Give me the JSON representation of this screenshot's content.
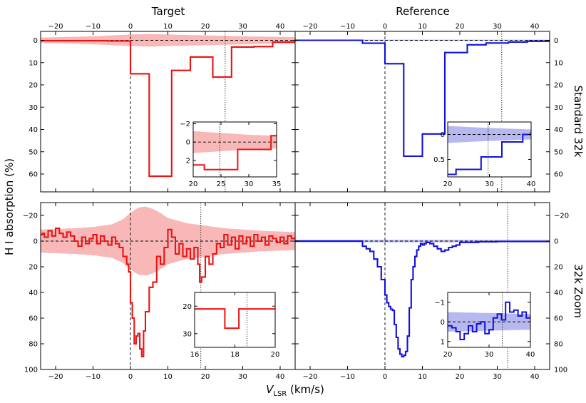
{
  "figure": {
    "col_titles": [
      "Target",
      "Reference"
    ],
    "row_labels": [
      "Standard 32k",
      "32k Zoom"
    ],
    "ylabel": "H I absorption (%)",
    "xlabel_main": "V",
    "xlabel_sub": "LSR",
    "xlabel_unit": " (km/s)"
  },
  "colors": {
    "target_line": "#ee1111",
    "target_band": "#f8b8b8",
    "reference_line": "#1010e0",
    "reference_band": "#b8b8f0",
    "axis": "#000000"
  },
  "chart_data": [
    {
      "panel": "target-standard",
      "type": "line",
      "step": true,
      "x_range": [
        -24,
        44
      ],
      "y_range": [
        68,
        -4
      ],
      "x_ticks": [
        -20,
        -10,
        0,
        10,
        20,
        30,
        40
      ],
      "y_ticks": [
        0,
        10,
        20,
        30,
        40,
        50,
        60
      ],
      "x": [
        -24,
        -6,
        0,
        5,
        11,
        16,
        22,
        27,
        33,
        38,
        44
      ],
      "y": [
        0.2,
        0.3,
        15,
        61,
        13.5,
        7.5,
        16.5,
        3,
        2.8,
        0.8,
        0.3
      ],
      "band_x": [
        -24,
        -10,
        0,
        5,
        10,
        20,
        30,
        44
      ],
      "band_hi": [
        1.2,
        1.8,
        2.6,
        2.8,
        2.6,
        2.2,
        1.8,
        1.4
      ],
      "vlines": [
        {
          "x": 0,
          "style": "dashed"
        },
        {
          "x": 25.3,
          "style": "dotted"
        }
      ],
      "inset": {
        "x_range": [
          20,
          35
        ],
        "y_range": [
          3.8,
          -2.2
        ],
        "x_ticks": [
          20,
          25,
          30,
          35
        ],
        "y_ticks": [
          -2,
          0,
          2
        ],
        "x": [
          20,
          22,
          28,
          34,
          35
        ],
        "y": [
          2.5,
          3.0,
          0.8,
          -0.7,
          -0.7
        ],
        "band_x": [
          20,
          25,
          30,
          35
        ],
        "band_hi": [
          1.2,
          1.0,
          0.8,
          0.7
        ],
        "vlines": [
          {
            "x": 24.8,
            "style": "dotted"
          }
        ]
      }
    },
    {
      "panel": "reference-standard",
      "type": "line",
      "step": true,
      "x_range": [
        -24,
        44
      ],
      "y_range": [
        68,
        -4
      ],
      "x_ticks": [
        -20,
        -10,
        0,
        10,
        20,
        30,
        40
      ],
      "y_ticks": [
        0,
        10,
        20,
        30,
        40,
        50,
        60
      ],
      "x": [
        -24,
        -6,
        0,
        5,
        10,
        16,
        22,
        27,
        33,
        38,
        44
      ],
      "y": [
        0,
        1.3,
        10.5,
        52,
        42,
        5.5,
        2.0,
        1.2,
        0.8,
        0.4,
        0.3
      ],
      "band_x": [
        -24,
        44
      ],
      "band_hi": [
        0.3,
        0.3
      ],
      "vlines": [
        {
          "x": 0,
          "style": "dashed"
        },
        {
          "x": 31.2,
          "style": "dotted"
        }
      ],
      "inset": {
        "x_range": [
          20,
          40
        ],
        "y_range": [
          0.85,
          -0.25
        ],
        "x_ticks": [
          20,
          30,
          40
        ],
        "y_ticks": [
          0.0,
          0.5
        ],
        "x": [
          20,
          22,
          28,
          33,
          38,
          40
        ],
        "y": [
          0.8,
          0.7,
          0.45,
          0.15,
          0.0,
          -0.05
        ],
        "band_x": [
          20,
          30,
          40
        ],
        "band_hi": [
          0.17,
          0.13,
          0.1
        ],
        "vlines": [
          {
            "x": 29.7,
            "style": "dotted"
          }
        ]
      }
    },
    {
      "panel": "target-zoom",
      "type": "line",
      "step": true,
      "x_range": [
        -24,
        44
      ],
      "y_range": [
        100,
        -30
      ],
      "x_ticks": [
        -20,
        -10,
        0,
        10,
        20,
        30,
        40
      ],
      "y_ticks": [
        -20,
        0,
        20,
        40,
        60,
        80,
        100
      ],
      "x": [
        -24,
        -23.5,
        -23,
        -22,
        -21,
        -20,
        -19,
        -18,
        -17,
        -16,
        -15,
        -14,
        -13,
        -12,
        -11,
        -10,
        -9,
        -8,
        -7,
        -6,
        -5,
        -4,
        -3,
        -2,
        -1,
        -0.5,
        0,
        0.5,
        1,
        1.5,
        2,
        2.5,
        3,
        3.5,
        4,
        5,
        6,
        7,
        8,
        9,
        10,
        11,
        12,
        13,
        14,
        15,
        16,
        17,
        18,
        18.5,
        19,
        20,
        21,
        22,
        23,
        24,
        25,
        26,
        27,
        28,
        29,
        30,
        31,
        32,
        33,
        34,
        35,
        36,
        37,
        38,
        39,
        40,
        41,
        42,
        43,
        44
      ],
      "y": [
        -5,
        -6,
        -3,
        -8,
        -4,
        -10,
        -6,
        -3,
        -7,
        -4,
        0,
        4,
        -3,
        2,
        -2,
        -5,
        2,
        -4,
        0,
        3,
        -3,
        2,
        5,
        12,
        18,
        24,
        48,
        60,
        80,
        74,
        72,
        84,
        90,
        70,
        55,
        36,
        32,
        12,
        18,
        5,
        -9,
        -3,
        10,
        2,
        12,
        6,
        14,
        5,
        18,
        32,
        28,
        12,
        18,
        10,
        2,
        5,
        -5,
        3,
        -3,
        6,
        -4,
        2,
        -3,
        4,
        -5,
        0,
        -3,
        3,
        -4,
        -2,
        1,
        -3,
        2,
        -4,
        -2,
        -3
      ],
      "band_x": [
        -24,
        -15,
        -10,
        -5,
        -2,
        0,
        2,
        4,
        6,
        8,
        10,
        15,
        20,
        25,
        30,
        35,
        44
      ],
      "band_hi": [
        9,
        10,
        11,
        13,
        17,
        22,
        26,
        27,
        25,
        22,
        18,
        14,
        12,
        10,
        9,
        8,
        7
      ],
      "vlines": [
        {
          "x": 0,
          "style": "dashed"
        },
        {
          "x": 18.8,
          "style": "dotted"
        }
      ],
      "inset": {
        "x_range": [
          16,
          20
        ],
        "y_range": [
          35,
          15
        ],
        "x_ticks": [
          16,
          18,
          20
        ],
        "y_ticks": [
          20,
          30
        ],
        "x": [
          16,
          16.7,
          17.5,
          18.2,
          19.2,
          20
        ],
        "y": [
          21,
          21,
          28,
          21,
          21,
          21
        ],
        "band_x": [
          16,
          18,
          20
        ],
        "band_hi": [
          2,
          2,
          2
        ],
        "vlines": [
          {
            "x": 18.6,
            "style": "dotted"
          }
        ]
      }
    },
    {
      "panel": "reference-zoom",
      "type": "line",
      "step": true,
      "x_range": [
        -24,
        44
      ],
      "y_range": [
        100,
        -30
      ],
      "x_ticks": [
        -20,
        -10,
        0,
        10,
        20,
        30,
        40
      ],
      "y_ticks": [
        -20,
        0,
        20,
        40,
        60,
        80,
        100
      ],
      "x": [
        -24,
        -15,
        -6,
        -5,
        -4,
        -3,
        -2,
        -1,
        0,
        0.5,
        1,
        1.5,
        2,
        2.5,
        3,
        3.5,
        4,
        4.5,
        5,
        5.5,
        6,
        6.5,
        7,
        7.5,
        8,
        8.5,
        9,
        9.5,
        10,
        10.5,
        11,
        12,
        13,
        14,
        15,
        16,
        17,
        18,
        19,
        20,
        25,
        30,
        44
      ],
      "y": [
        0,
        0,
        4,
        6,
        8,
        14,
        20,
        30,
        42,
        48,
        51,
        53,
        54,
        65,
        75,
        84,
        88,
        90,
        89,
        86,
        74,
        52,
        30,
        20,
        12,
        7,
        4,
        2,
        3,
        2,
        1,
        2,
        4,
        6,
        8,
        7,
        5,
        4,
        3,
        1,
        0.5,
        0.3,
        0.3
      ],
      "band_x": [
        -24,
        44
      ],
      "band_hi": [
        1,
        1
      ],
      "vlines": [
        {
          "x": 0,
          "style": "dashed"
        },
        {
          "x": 32.8,
          "style": "dotted"
        }
      ],
      "inset": {
        "x_range": [
          20,
          40
        ],
        "y_range": [
          1.3,
          -1.5
        ],
        "x_ticks": [
          20,
          30,
          40
        ],
        "y_ticks": [
          -1,
          0,
          1
        ],
        "x": [
          20,
          21,
          22,
          23,
          24,
          25,
          26,
          27,
          28,
          29,
          30,
          31,
          32,
          33,
          34,
          35,
          36,
          37,
          38,
          39,
          40
        ],
        "y": [
          0.2,
          0.3,
          0.5,
          0.9,
          0.6,
          0.2,
          0.5,
          0.1,
          0.0,
          0.6,
          0.4,
          -0.2,
          -0.4,
          -0.1,
          -1.0,
          -0.5,
          -0.6,
          -0.3,
          -0.5,
          -0.2,
          -0.3
        ],
        "band_x": [
          20,
          30,
          40
        ],
        "band_hi": [
          0.5,
          0.45,
          0.4
        ],
        "vlines": [
          {
            "x": 33.2,
            "style": "dotted"
          }
        ]
      }
    }
  ]
}
